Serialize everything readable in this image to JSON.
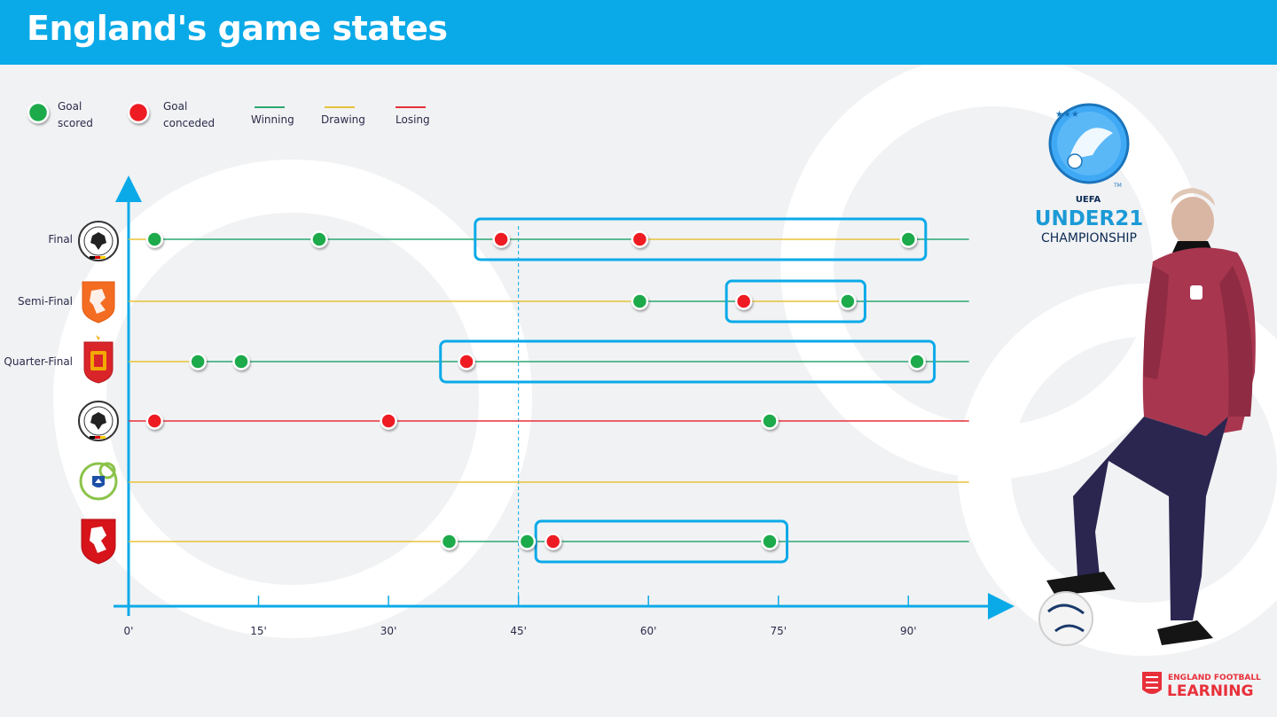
{
  "header": {
    "title": "England's game states"
  },
  "legend": {
    "goal_scored": "Goal\nscored",
    "goal_conceded": "Goal\nconceded",
    "winning": "Winning",
    "drawing": "Drawing",
    "losing": "Losing"
  },
  "colors": {
    "winning": "#2ca872",
    "drawing": "#e8c23a",
    "losing": "#e8303a",
    "scored": "#1faa4c",
    "conceded": "#ee1c24",
    "accent": "#0aaae8",
    "header": "#0aaae8"
  },
  "branding": {
    "uefa": "UEFA",
    "under21": "UNDER21",
    "championship": "CHAMPIONSHIP",
    "tm": "TM",
    "efl_top": "ENGLAND FOOTBALL",
    "efl_bottom": "LEARNING"
  },
  "chart_data": {
    "type": "timeline",
    "x_ticks": [
      "0'",
      "15'",
      "30'",
      "45'",
      "60'",
      "75'",
      "90'"
    ],
    "xlim": [
      0,
      97
    ],
    "reference_line": 45,
    "rows": [
      {
        "label": "Final",
        "team": "germany",
        "events": [
          {
            "minute": 3,
            "type": "scored"
          },
          {
            "minute": 22,
            "type": "scored"
          },
          {
            "minute": 43,
            "type": "conceded"
          },
          {
            "minute": 59,
            "type": "conceded"
          },
          {
            "minute": 90,
            "type": "scored"
          }
        ],
        "segments": [
          {
            "from": 0,
            "to": 3,
            "state": "drawing"
          },
          {
            "from": 3,
            "to": 59,
            "state": "winning"
          },
          {
            "from": 59,
            "to": 90,
            "state": "drawing"
          },
          {
            "from": 90,
            "to": 97,
            "state": "winning"
          }
        ],
        "highlight": [
          40,
          92
        ]
      },
      {
        "label": "Semi-Final",
        "team": "netherlands",
        "events": [
          {
            "minute": 59,
            "type": "scored"
          },
          {
            "minute": 71,
            "type": "conceded"
          },
          {
            "minute": 83,
            "type": "scored"
          }
        ],
        "segments": [
          {
            "from": 0,
            "to": 59,
            "state": "drawing"
          },
          {
            "from": 59,
            "to": 71,
            "state": "winning"
          },
          {
            "from": 71,
            "to": 83,
            "state": "drawing"
          },
          {
            "from": 83,
            "to": 97,
            "state": "winning"
          }
        ],
        "highlight": [
          69,
          85
        ]
      },
      {
        "label": "Quarter-Final",
        "team": "spain",
        "events": [
          {
            "minute": 8,
            "type": "scored"
          },
          {
            "minute": 13,
            "type": "scored"
          },
          {
            "minute": 39,
            "type": "conceded"
          },
          {
            "minute": 91,
            "type": "scored"
          }
        ],
        "segments": [
          {
            "from": 0,
            "to": 8,
            "state": "drawing"
          },
          {
            "from": 8,
            "to": 97,
            "state": "winning"
          }
        ],
        "highlight": [
          36,
          93
        ]
      },
      {
        "label": "",
        "team": "germany",
        "events": [
          {
            "minute": 3,
            "type": "conceded"
          },
          {
            "minute": 30,
            "type": "conceded"
          },
          {
            "minute": 74,
            "type": "scored"
          }
        ],
        "segments": [
          {
            "from": 0,
            "to": 97,
            "state": "losing"
          }
        ],
        "highlight": null
      },
      {
        "label": "",
        "team": "slovenia",
        "events": [],
        "segments": [
          {
            "from": 0,
            "to": 97,
            "state": "drawing"
          }
        ],
        "highlight": null
      },
      {
        "label": "",
        "team": "czechia",
        "events": [
          {
            "minute": 37,
            "type": "scored"
          },
          {
            "minute": 46,
            "type": "scored"
          },
          {
            "minute": 49,
            "type": "conceded"
          },
          {
            "minute": 74,
            "type": "scored"
          }
        ],
        "segments": [
          {
            "from": 0,
            "to": 37,
            "state": "drawing"
          },
          {
            "from": 37,
            "to": 97,
            "state": "winning"
          }
        ],
        "highlight": [
          47,
          76
        ]
      }
    ]
  }
}
